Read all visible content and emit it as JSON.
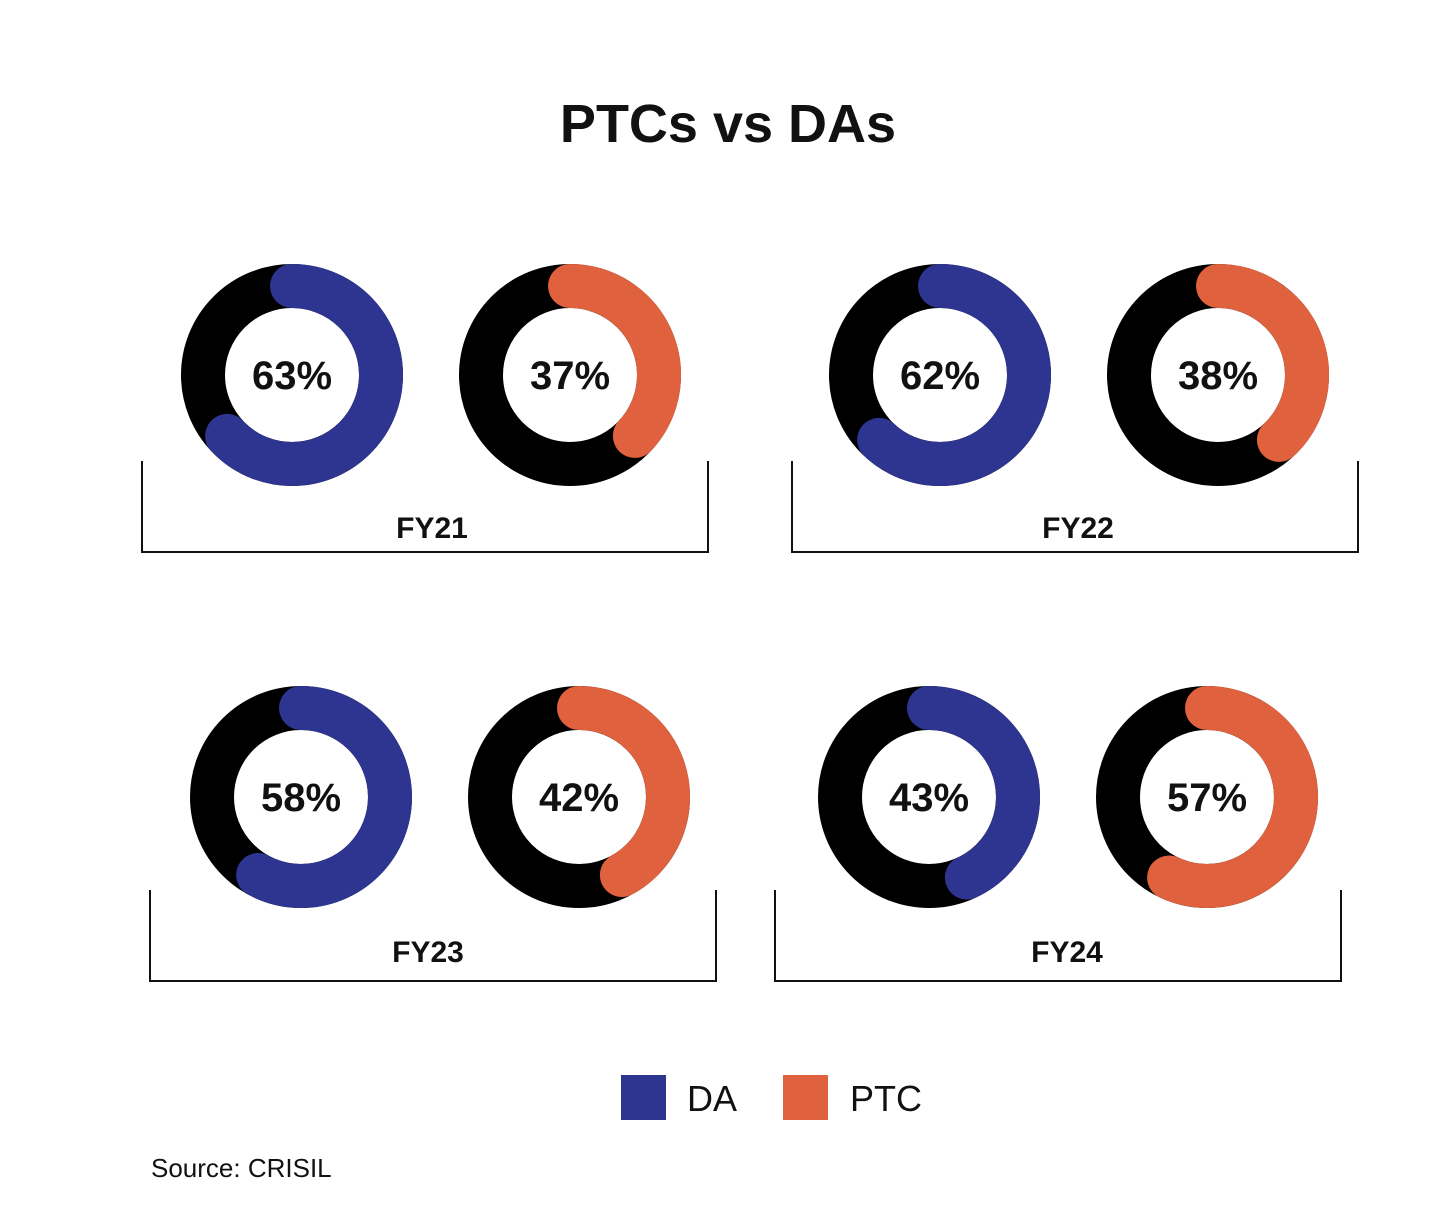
{
  "chart_data": {
    "type": "donut-grid",
    "title": "PTCs vs DAs",
    "colors": {
      "DA": "#2e3590",
      "PTC": "#e0613d",
      "remainder": "#000000"
    },
    "legend": [
      {
        "name": "DA",
        "color": "#2e3590"
      },
      {
        "name": "PTC",
        "color": "#e0613d"
      }
    ],
    "periods": [
      {
        "label": "FY21",
        "DA": 63,
        "PTC": 37,
        "DA_label": "63%",
        "PTC_label": "37%"
      },
      {
        "label": "FY22",
        "DA": 62,
        "PTC": 38,
        "DA_label": "62%",
        "PTC_label": "38%"
      },
      {
        "label": "FY23",
        "DA": 58,
        "PTC": 42,
        "DA_label": "58%",
        "PTC_label": "42%"
      },
      {
        "label": "FY24",
        "DA": 43,
        "PTC": 57,
        "DA_label": "43%",
        "PTC_label": "57%"
      }
    ],
    "source": "Source: CRISIL"
  }
}
